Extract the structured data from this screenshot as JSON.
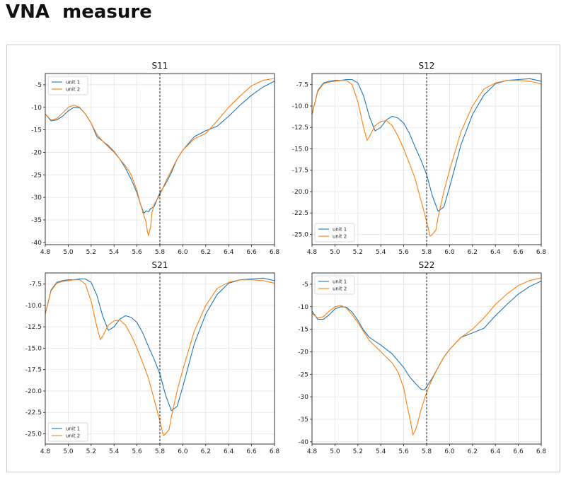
{
  "page": {
    "title": "VNA  measure"
  },
  "colors": {
    "unit1": "#1f77b4",
    "unit2": "#ff7f0e",
    "grid": "#e3e3e3",
    "axis": "#222222",
    "marker": "#111111"
  },
  "chart_data": [
    {
      "type": "line",
      "title": "S11",
      "xlim": [
        4.8,
        6.8
      ],
      "ylim": [
        -40.5,
        -2.5
      ],
      "xticks": [
        "4.8",
        "5.0",
        "5.2",
        "5.4",
        "5.6",
        "5.8",
        "6.0",
        "6.2",
        "6.4",
        "6.6",
        "6.8"
      ],
      "yticks": [
        "-5",
        "-10",
        "-15",
        "-20",
        "-25",
        "-30",
        "-35",
        "-40"
      ],
      "ytick_values": [
        -5,
        -10,
        -15,
        -20,
        -25,
        -30,
        -35,
        -40
      ],
      "grid": true,
      "legend": "upper-left",
      "vline": 5.8,
      "series": [
        {
          "name": "unit 1",
          "x": [
            4.8,
            4.85,
            4.9,
            4.95,
            5.0,
            5.05,
            5.1,
            5.15,
            5.2,
            5.25,
            5.3,
            5.35,
            5.4,
            5.45,
            5.5,
            5.55,
            5.6,
            5.63,
            5.66,
            5.68,
            5.7,
            5.72,
            5.75,
            5.8,
            5.85,
            5.9,
            5.95,
            6.0,
            6.1,
            6.2,
            6.3,
            6.4,
            6.5,
            6.6,
            6.7,
            6.8
          ],
          "y": [
            -11.5,
            -13,
            -12.8,
            -12,
            -10.8,
            -10,
            -10.1,
            -11.5,
            -13.5,
            -16.5,
            -17.5,
            -18.5,
            -19.8,
            -21.5,
            -23.5,
            -26,
            -29,
            -31.5,
            -33.5,
            -33,
            -33.2,
            -32.5,
            -32,
            -29,
            -27,
            -24.5,
            -21.5,
            -19.5,
            -16.5,
            -15.2,
            -14.2,
            -12,
            -9.5,
            -7.3,
            -5.5,
            -4.2
          ]
        },
        {
          "name": "unit 2",
          "x": [
            4.8,
            4.85,
            4.9,
            4.95,
            5.0,
            5.05,
            5.1,
            5.15,
            5.2,
            5.25,
            5.3,
            5.35,
            5.4,
            5.45,
            5.5,
            5.55,
            5.6,
            5.63,
            5.66,
            5.68,
            5.69,
            5.7,
            5.71,
            5.72,
            5.73,
            5.75,
            5.8,
            5.85,
            5.9,
            5.95,
            6.0,
            6.1,
            6.2,
            6.3,
            6.4,
            6.5,
            6.6,
            6.7,
            6.8
          ],
          "y": [
            -11.5,
            -12.8,
            -12.5,
            -11.3,
            -10,
            -9.5,
            -10,
            -11.5,
            -13.5,
            -16,
            -17.5,
            -18.8,
            -20,
            -21.5,
            -23,
            -25,
            -28.5,
            -31.5,
            -34,
            -35.5,
            -37.5,
            -38.5,
            -37.5,
            -36.5,
            -33.5,
            -31.5,
            -29.5,
            -26.5,
            -24,
            -21.5,
            -19.5,
            -17,
            -15.8,
            -13,
            -10,
            -7.5,
            -5.2,
            -4,
            -3.6
          ]
        }
      ]
    },
    {
      "type": "line",
      "title": "S12",
      "xlim": [
        4.8,
        6.8
      ],
      "ylim": [
        -26.2,
        -6.2
      ],
      "xticks": [
        "4.8",
        "5.0",
        "5.2",
        "5.4",
        "5.6",
        "5.8",
        "6.0",
        "6.2",
        "6.4",
        "6.6",
        "6.8"
      ],
      "yticks": [
        "-7.5",
        "-10.0",
        "-12.5",
        "-15.0",
        "-17.5",
        "-20.0",
        "-22.5",
        "-25.0"
      ],
      "ytick_values": [
        -7.5,
        -10,
        -12.5,
        -15,
        -17.5,
        -20,
        -22.5,
        -25
      ],
      "grid": true,
      "legend": "lower-left",
      "vline": 5.8,
      "series": [
        {
          "name": "unit 1",
          "x": [
            4.8,
            4.85,
            4.9,
            4.95,
            5.0,
            5.05,
            5.1,
            5.15,
            5.2,
            5.25,
            5.3,
            5.35,
            5.4,
            5.45,
            5.5,
            5.55,
            5.6,
            5.65,
            5.7,
            5.75,
            5.8,
            5.85,
            5.9,
            5.92,
            5.95,
            6.0,
            6.05,
            6.1,
            6.2,
            6.3,
            6.4,
            6.5,
            6.6,
            6.7,
            6.8
          ],
          "y": [
            -11,
            -8.2,
            -7.3,
            -7.1,
            -7.0,
            -7.0,
            -6.9,
            -6.9,
            -7.3,
            -8.8,
            -11.2,
            -12.9,
            -12.5,
            -11.6,
            -11.2,
            -11.4,
            -12,
            -13.2,
            -14.8,
            -16.3,
            -18,
            -20.5,
            -22.3,
            -22.1,
            -21.8,
            -19.5,
            -17,
            -14.5,
            -11,
            -8.7,
            -7.4,
            -7,
            -6.9,
            -6.8,
            -7.1
          ]
        },
        {
          "name": "unit 2",
          "x": [
            4.8,
            4.85,
            4.9,
            4.95,
            5.0,
            5.05,
            5.1,
            5.15,
            5.2,
            5.25,
            5.28,
            5.3,
            5.35,
            5.4,
            5.45,
            5.5,
            5.55,
            5.6,
            5.65,
            5.7,
            5.75,
            5.8,
            5.83,
            5.85,
            5.88,
            5.9,
            5.95,
            6.0,
            6.1,
            6.2,
            6.3,
            6.4,
            6.5,
            6.6,
            6.7,
            6.8
          ],
          "y": [
            -11,
            -8.3,
            -7.4,
            -7.2,
            -7.1,
            -7.0,
            -7.0,
            -7.5,
            -9.5,
            -12.5,
            -14,
            -13.6,
            -12.3,
            -11.8,
            -11.7,
            -12.3,
            -13.5,
            -15,
            -16.7,
            -18.5,
            -21,
            -23.5,
            -25.2,
            -25,
            -24.5,
            -23,
            -20,
            -17.5,
            -13,
            -10,
            -8,
            -7.3,
            -7.0,
            -7.0,
            -7.1,
            -7.4
          ]
        }
      ]
    },
    {
      "type": "line",
      "title": "S21",
      "xlim": [
        4.8,
        6.8
      ],
      "ylim": [
        -26.2,
        -6.2
      ],
      "xticks": [
        "4.8",
        "5.0",
        "5.2",
        "5.4",
        "5.6",
        "5.8",
        "6.0",
        "6.2",
        "6.4",
        "6.6",
        "6.8"
      ],
      "yticks": [
        "-7.5",
        "-10.0",
        "-12.5",
        "-15.0",
        "-17.5",
        "-20.0",
        "-22.5",
        "-25.0"
      ],
      "ytick_values": [
        -7.5,
        -10,
        -12.5,
        -15,
        -17.5,
        -20,
        -22.5,
        -25
      ],
      "grid": true,
      "legend": "lower-left",
      "vline": 5.8,
      "series": [
        {
          "name": "unit 1",
          "x": [
            4.8,
            4.85,
            4.9,
            4.95,
            5.0,
            5.05,
            5.1,
            5.15,
            5.2,
            5.25,
            5.3,
            5.35,
            5.4,
            5.45,
            5.5,
            5.55,
            5.6,
            5.65,
            5.7,
            5.75,
            5.8,
            5.85,
            5.9,
            5.92,
            5.95,
            6.0,
            6.05,
            6.1,
            6.2,
            6.3,
            6.4,
            6.5,
            6.6,
            6.7,
            6.8
          ],
          "y": [
            -11,
            -8.2,
            -7.3,
            -7.1,
            -7.0,
            -7.0,
            -6.9,
            -6.9,
            -7.3,
            -8.8,
            -11.2,
            -12.9,
            -12.5,
            -11.6,
            -11.2,
            -11.4,
            -12,
            -13.2,
            -14.8,
            -16.3,
            -18,
            -20.5,
            -22.3,
            -22.1,
            -21.8,
            -19.5,
            -17,
            -14.5,
            -11,
            -8.7,
            -7.4,
            -7,
            -6.9,
            -6.8,
            -7.1
          ]
        },
        {
          "name": "unit 2",
          "x": [
            4.8,
            4.85,
            4.9,
            4.95,
            5.0,
            5.05,
            5.1,
            5.15,
            5.2,
            5.25,
            5.28,
            5.3,
            5.35,
            5.4,
            5.45,
            5.5,
            5.55,
            5.6,
            5.65,
            5.7,
            5.75,
            5.8,
            5.83,
            5.85,
            5.88,
            5.9,
            5.95,
            6.0,
            6.1,
            6.2,
            6.3,
            6.4,
            6.5,
            6.6,
            6.7,
            6.8
          ],
          "y": [
            -11,
            -8.3,
            -7.4,
            -7.2,
            -7.1,
            -7.0,
            -7.0,
            -7.5,
            -9.5,
            -12.5,
            -14,
            -13.6,
            -12.3,
            -11.8,
            -11.7,
            -12.3,
            -13.5,
            -15,
            -16.7,
            -18.5,
            -21,
            -23.5,
            -25.2,
            -25,
            -24.5,
            -23,
            -20,
            -17.5,
            -13,
            -10,
            -8,
            -7.3,
            -7.0,
            -7.0,
            -7.1,
            -7.4
          ]
        }
      ]
    },
    {
      "type": "line",
      "title": "S22",
      "xlim": [
        4.8,
        6.8
      ],
      "ylim": [
        -40.5,
        -2.5
      ],
      "xticks": [
        "4.8",
        "5.0",
        "5.2",
        "5.4",
        "5.6",
        "5.8",
        "6.0",
        "6.2",
        "6.4",
        "6.6",
        "6.8"
      ],
      "yticks": [
        "-5",
        "-10",
        "-15",
        "-20",
        "-25",
        "-30",
        "-35",
        "-40"
      ],
      "ytick_values": [
        -5,
        -10,
        -15,
        -20,
        -25,
        -30,
        -35,
        -40
      ],
      "grid": true,
      "legend": "upper-left",
      "vline": 5.8,
      "series": [
        {
          "name": "unit 1",
          "x": [
            4.8,
            4.85,
            4.9,
            4.95,
            5.0,
            5.05,
            5.1,
            5.15,
            5.2,
            5.25,
            5.3,
            5.4,
            5.5,
            5.6,
            5.65,
            5.7,
            5.75,
            5.78,
            5.8,
            5.85,
            5.9,
            5.95,
            6.0,
            6.1,
            6.2,
            6.3,
            6.4,
            6.5,
            6.6,
            6.7,
            6.8
          ],
          "y": [
            -11,
            -12.8,
            -12.8,
            -11.8,
            -10.5,
            -10,
            -10.1,
            -11.2,
            -13,
            -15.2,
            -16.8,
            -18.5,
            -20.5,
            -23.5,
            -25.5,
            -27,
            -28.3,
            -28.5,
            -27.8,
            -25.8,
            -23.5,
            -21.2,
            -19.5,
            -16.8,
            -15.8,
            -14.8,
            -12,
            -9.5,
            -7.2,
            -5.5,
            -4.3
          ]
        },
        {
          "name": "unit 2",
          "x": [
            4.8,
            4.85,
            4.9,
            4.95,
            5.0,
            5.05,
            5.1,
            5.15,
            5.2,
            5.25,
            5.3,
            5.4,
            5.5,
            5.55,
            5.6,
            5.63,
            5.66,
            5.68,
            5.7,
            5.72,
            5.75,
            5.8,
            5.85,
            5.9,
            5.95,
            6.0,
            6.1,
            6.2,
            6.3,
            6.4,
            6.5,
            6.6,
            6.7,
            6.8
          ],
          "y": [
            -11.5,
            -12.5,
            -12.2,
            -11,
            -10,
            -9.7,
            -10.3,
            -11.8,
            -13.5,
            -15.5,
            -17.5,
            -20,
            -22.5,
            -24.5,
            -28,
            -32,
            -35.5,
            -38.5,
            -37.5,
            -36,
            -33,
            -29,
            -26,
            -23.5,
            -21.2,
            -19.5,
            -16.8,
            -15,
            -12.5,
            -9.5,
            -7.2,
            -5.3,
            -4.2,
            -3.6
          ]
        }
      ]
    }
  ]
}
